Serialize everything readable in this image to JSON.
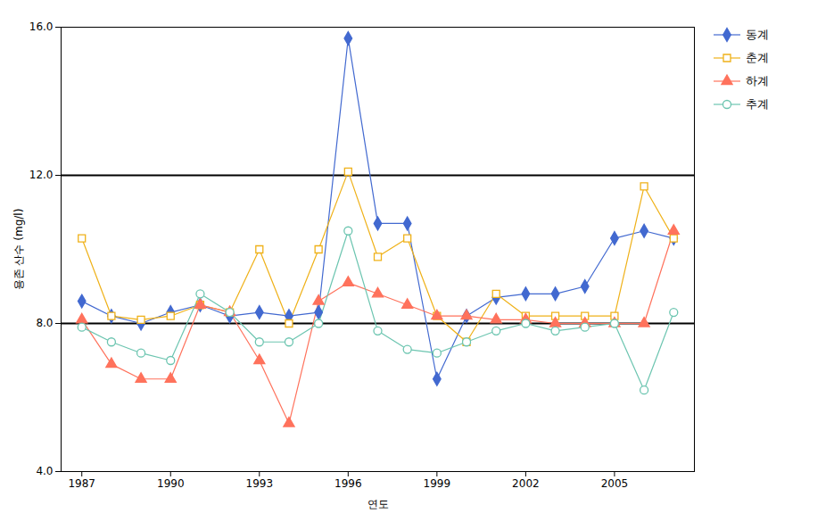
{
  "chart_data": {
    "type": "line",
    "x": [
      1987,
      1988,
      1989,
      1990,
      1991,
      1992,
      1993,
      1994,
      1995,
      1996,
      1997,
      1998,
      1999,
      2000,
      2001,
      2002,
      2003,
      2004,
      2005,
      2006,
      2007
    ],
    "series": [
      {
        "name": "동계",
        "marker": "diamond",
        "values": [
          8.6,
          8.2,
          8.0,
          8.3,
          8.5,
          8.2,
          8.3,
          8.2,
          8.3,
          15.7,
          10.7,
          10.7,
          6.5,
          8.2,
          8.7,
          8.8,
          8.8,
          9.0,
          10.3,
          10.5,
          10.3
        ]
      },
      {
        "name": "춘계",
        "marker": "square",
        "values": [
          10.3,
          8.2,
          8.1,
          8.2,
          8.5,
          8.3,
          10.0,
          8.0,
          10.0,
          12.1,
          9.8,
          10.3,
          8.2,
          7.5,
          8.8,
          8.2,
          8.2,
          8.2,
          8.2,
          11.7,
          10.3
        ]
      },
      {
        "name": "하계",
        "marker": "triangle",
        "values": [
          8.1,
          6.9,
          6.5,
          6.5,
          8.5,
          8.3,
          7.0,
          5.3,
          8.6,
          9.1,
          8.8,
          8.5,
          8.2,
          8.2,
          8.1,
          8.1,
          8.0,
          8.0,
          8.0,
          8.0,
          10.5
        ]
      },
      {
        "name": "추계",
        "marker": "circle",
        "values": [
          7.9,
          7.5,
          7.2,
          7.0,
          8.8,
          8.3,
          7.5,
          7.5,
          8.0,
          10.5,
          7.8,
          7.3,
          7.2,
          7.5,
          7.8,
          8.0,
          7.8,
          7.9,
          8.0,
          6.2,
          8.3
        ]
      }
    ],
    "reference_lines": [
      12.0,
      8.0
    ],
    "xlabel": "연도",
    "ylabel": "용존 산수 (mg/l)",
    "xlim": [
      1986.3,
      2007.7
    ],
    "xticks": [
      1987,
      1990,
      1993,
      1996,
      1999,
      2002,
      2005
    ],
    "ylim": [
      4.0,
      16.0
    ],
    "yticks": [
      {
        "value": 4.0,
        "label": "4.0"
      },
      {
        "value": 8.0,
        "label": "8.0"
      },
      {
        "value": 12.0,
        "label": "12.0"
      },
      {
        "value": 16.0,
        "label": "16.0"
      }
    ],
    "grid": false,
    "legend": "right"
  }
}
